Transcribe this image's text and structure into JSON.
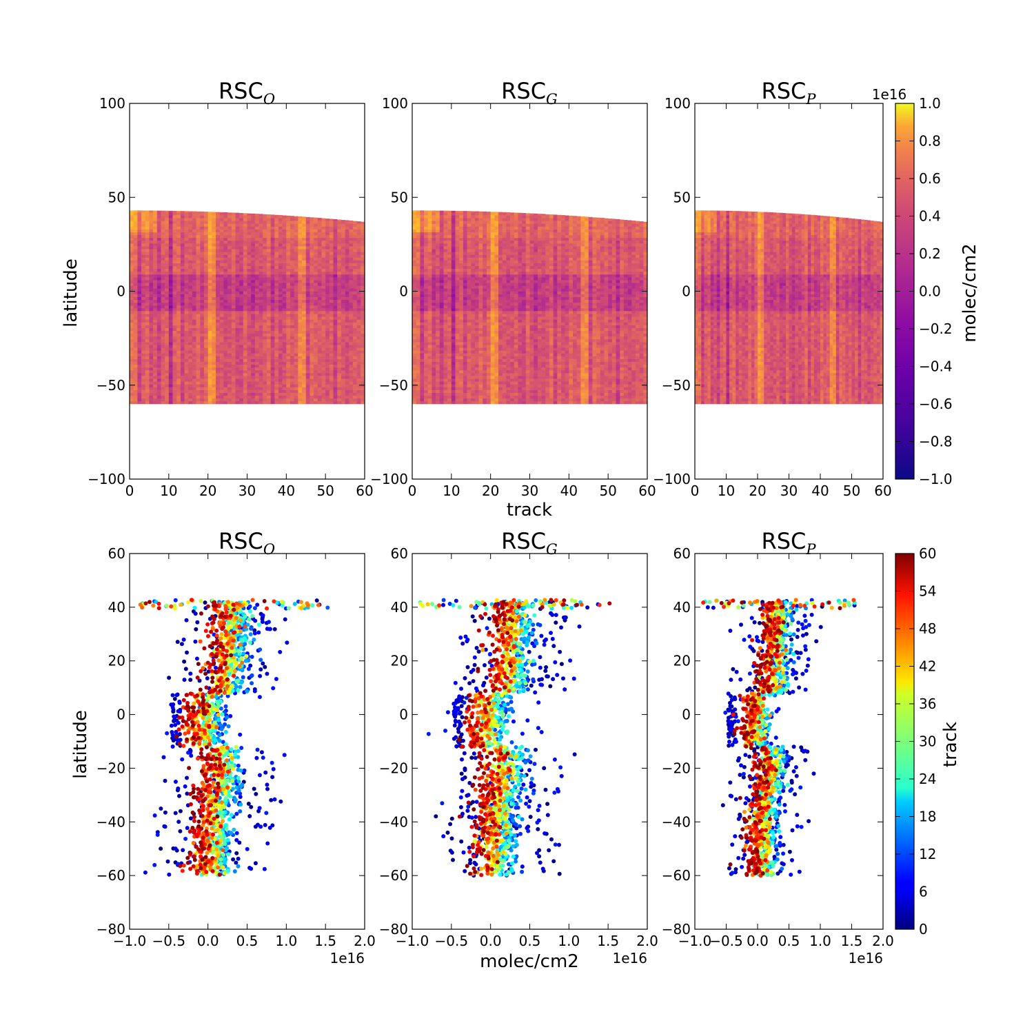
{
  "figure": {
    "top_xlabel": "track",
    "bottom_xlabel": "molec/cm2",
    "top_ylabel": "latitude",
    "bottom_ylabel": "latitude",
    "top_cbar_label": "molec/cm2",
    "bottom_cbar_label": "track",
    "top_cbar_offset": "1e16",
    "bottom_x_offset": "1e16"
  },
  "panels": [
    {
      "title": "RSC",
      "subscript": "O"
    },
    {
      "title": "RSC",
      "subscript": "G"
    },
    {
      "title": "RSC",
      "subscript": "P"
    }
  ],
  "chart_data": [
    {
      "type": "heatmap",
      "row": "top",
      "titles": [
        "RSC_O",
        "RSC_G",
        "RSC_P"
      ],
      "xlabel": "track",
      "ylabel": "latitude",
      "xlim": [
        0,
        60
      ],
      "ylim": [
        -100,
        100
      ],
      "xticks": [
        0,
        10,
        20,
        30,
        40,
        50,
        60
      ],
      "yticks": [
        -100,
        -50,
        0,
        50,
        100
      ],
      "data_extent": {
        "track": [
          1,
          60
        ],
        "latitude_min": -60,
        "latitude_max_at_track_1": 43,
        "latitude_max_at_track_60": 37
      },
      "colorbar": {
        "label": "molec/cm2",
        "offset": "1e16",
        "range": [
          -1.0,
          1.0
        ],
        "ticks": [
          "−1.0",
          "−0.8",
          "−0.6",
          "−0.4",
          "−0.2",
          "0.0",
          "0.2",
          "0.4",
          "0.6",
          "0.8",
          "1.0"
        ],
        "colormap": "plasma"
      }
    },
    {
      "type": "scatter",
      "row": "bottom",
      "titles": [
        "RSC_O",
        "RSC_G",
        "RSC_P"
      ],
      "xlabel": "molec/cm2",
      "ylabel": "latitude",
      "xlim": [
        -1.0,
        2.0
      ],
      "ylim": [
        -80,
        60
      ],
      "xticks": [
        "−1.0",
        "−0.5",
        "0.0",
        "0.5",
        "1.0",
        "1.5",
        "2.0"
      ],
      "yticks": [
        "−80",
        "−60",
        "−40",
        "−20",
        "0",
        "20",
        "40",
        "60"
      ],
      "x_offset": "1e16",
      "colorbar": {
        "label": "track",
        "range": [
          0,
          60
        ],
        "ticks": [
          "0",
          "6",
          "12",
          "18",
          "24",
          "30",
          "36",
          "42",
          "48",
          "54",
          "60"
        ],
        "colormap": "jet"
      }
    }
  ]
}
